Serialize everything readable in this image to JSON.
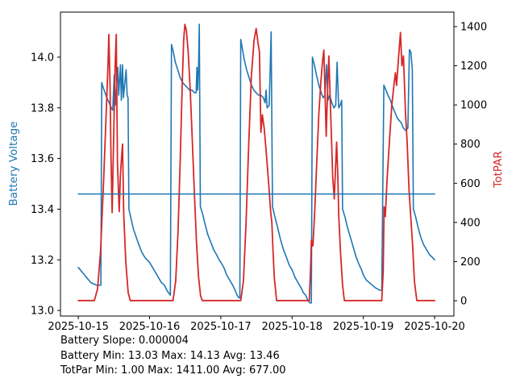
{
  "chart_data": {
    "type": "line",
    "title": "",
    "grid": false,
    "legend": "none",
    "x_axis": {
      "kind": "date",
      "range_hours": [
        -6,
        126.5
      ],
      "ticks": [
        {
          "hour": 0,
          "label": "2025-10-15"
        },
        {
          "hour": 24,
          "label": "2025-10-16"
        },
        {
          "hour": 48,
          "label": "2025-10-17"
        },
        {
          "hour": 72,
          "label": "2025-10-18"
        },
        {
          "hour": 96,
          "label": "2025-10-19"
        },
        {
          "hour": 120,
          "label": "2025-10-20"
        }
      ]
    },
    "y_left": {
      "label": "Battery Voltage",
      "color": "#1f77b4",
      "range": [
        12.978,
        14.178
      ],
      "ticks": [
        {
          "value": 13.0,
          "label": "13.0"
        },
        {
          "value": 13.2,
          "label": "13.2"
        },
        {
          "value": 13.4,
          "label": "13.4"
        },
        {
          "value": 13.6,
          "label": "13.6"
        },
        {
          "value": 13.8,
          "label": "13.8"
        },
        {
          "value": 14.0,
          "label": "14.0"
        }
      ]
    },
    "y_right": {
      "label": "TotPAR",
      "color": "#d62728",
      "range": [
        -78,
        1474
      ],
      "ticks": [
        {
          "value": 0,
          "label": "0"
        },
        {
          "value": 200,
          "label": "200"
        },
        {
          "value": 400,
          "label": "400"
        },
        {
          "value": 600,
          "label": "600"
        },
        {
          "value": 800,
          "label": "800"
        },
        {
          "value": 1000,
          "label": "1000"
        },
        {
          "value": 1200,
          "label": "1200"
        },
        {
          "value": 1400,
          "label": "1400"
        }
      ]
    },
    "series": [
      {
        "name": "battery-voltage",
        "axis": "left",
        "color": "#1f77b4",
        "width": 1.6,
        "points": [
          [
            0,
            13.17
          ],
          [
            0.7,
            13.16
          ],
          [
            1.4,
            13.15
          ],
          [
            2.1,
            13.14
          ],
          [
            2.8,
            13.13
          ],
          [
            3.5,
            13.12
          ],
          [
            4.2,
            13.11
          ],
          [
            5.2,
            13.105
          ],
          [
            6.2,
            13.1
          ],
          [
            7.0,
            13.1
          ],
          [
            7.6,
            13.1
          ],
          [
            7.9,
            13.9
          ],
          [
            8.4,
            13.88
          ],
          [
            9.0,
            13.86
          ],
          [
            9.6,
            13.84
          ],
          [
            10.4,
            13.82
          ],
          [
            11.1,
            13.8
          ],
          [
            11.6,
            13.79
          ],
          [
            12.1,
            13.93
          ],
          [
            12.45,
            13.81
          ],
          [
            13.3,
            13.96
          ],
          [
            13.6,
            13.85
          ],
          [
            14.2,
            13.97
          ],
          [
            14.5,
            13.83
          ],
          [
            14.9,
            13.97
          ],
          [
            15.2,
            13.84
          ],
          [
            16.1,
            13.95
          ],
          [
            16.45,
            13.85
          ],
          [
            16.75,
            13.84
          ],
          [
            17.05,
            13.4
          ],
          [
            17.8,
            13.36
          ],
          [
            18.6,
            13.32
          ],
          [
            19.5,
            13.29
          ],
          [
            20.4,
            13.26
          ],
          [
            21.4,
            13.23
          ],
          [
            22.4,
            13.21
          ],
          [
            23.2,
            13.2
          ],
          [
            24,
            13.19
          ],
          [
            25,
            13.17
          ],
          [
            26,
            13.15
          ],
          [
            27,
            13.13
          ],
          [
            28,
            13.11
          ],
          [
            29,
            13.1
          ],
          [
            29.8,
            13.08
          ],
          [
            30.4,
            13.07
          ],
          [
            31.0,
            13.06
          ],
          [
            31.4,
            14.05
          ],
          [
            32.0,
            14.02
          ],
          [
            32.7,
            13.98
          ],
          [
            33.5,
            13.95
          ],
          [
            34.3,
            13.92
          ],
          [
            35.1,
            13.9
          ],
          [
            35.9,
            13.89
          ],
          [
            36.7,
            13.88
          ],
          [
            37.5,
            13.87
          ],
          [
            38.3,
            13.87
          ],
          [
            39.1,
            13.86
          ],
          [
            39.7,
            13.86
          ],
          [
            39.95,
            13.96
          ],
          [
            40.2,
            13.87
          ],
          [
            40.5,
            13.97
          ],
          [
            40.75,
            14.13
          ],
          [
            41.1,
            13.41
          ],
          [
            41.9,
            13.38
          ],
          [
            42.7,
            13.34
          ],
          [
            43.6,
            13.3
          ],
          [
            44.6,
            13.27
          ],
          [
            45.6,
            13.24
          ],
          [
            46.6,
            13.22
          ],
          [
            47.4,
            13.2
          ],
          [
            48,
            13.19
          ],
          [
            49,
            13.17
          ],
          [
            50,
            13.14
          ],
          [
            51,
            13.12
          ],
          [
            52,
            13.1
          ],
          [
            52.8,
            13.08
          ],
          [
            53.5,
            13.06
          ],
          [
            54.1,
            13.05
          ],
          [
            54.4,
            13.05
          ],
          [
            54.7,
            14.07
          ],
          [
            55.3,
            14.03
          ],
          [
            55.9,
            13.99
          ],
          [
            56.7,
            13.95
          ],
          [
            57.5,
            13.92
          ],
          [
            58.3,
            13.89
          ],
          [
            59.1,
            13.87
          ],
          [
            59.9,
            13.86
          ],
          [
            60.7,
            13.85
          ],
          [
            61.5,
            13.85
          ],
          [
            62.3,
            13.84
          ],
          [
            62.9,
            13.82
          ],
          [
            63.25,
            13.87
          ],
          [
            63.6,
            13.8
          ],
          [
            64.3,
            13.81
          ],
          [
            64.95,
            14.1
          ],
          [
            65.4,
            13.41
          ],
          [
            66.2,
            13.37
          ],
          [
            67.1,
            13.33
          ],
          [
            68.1,
            13.28
          ],
          [
            69.1,
            13.24
          ],
          [
            70.1,
            13.21
          ],
          [
            71,
            13.18
          ],
          [
            72,
            13.16
          ],
          [
            73,
            13.13
          ],
          [
            74,
            13.11
          ],
          [
            75,
            13.09
          ],
          [
            75.8,
            13.07
          ],
          [
            76.6,
            13.06
          ],
          [
            77.3,
            13.04
          ],
          [
            78.0,
            13.03
          ],
          [
            78.5,
            13.03
          ],
          [
            78.85,
            14.0
          ],
          [
            79.5,
            13.97
          ],
          [
            80.2,
            13.93
          ],
          [
            81.0,
            13.89
          ],
          [
            81.8,
            13.86
          ],
          [
            82.5,
            13.84
          ],
          [
            83.1,
            13.85
          ],
          [
            83.6,
            13.97
          ],
          [
            84.1,
            13.83
          ],
          [
            84.7,
            13.85
          ],
          [
            85.4,
            13.82
          ],
          [
            86.1,
            13.8
          ],
          [
            86.7,
            13.81
          ],
          [
            87.15,
            13.98
          ],
          [
            87.7,
            13.8
          ],
          [
            88.2,
            13.81
          ],
          [
            88.7,
            13.83
          ],
          [
            89.0,
            13.4
          ],
          [
            89.8,
            13.37
          ],
          [
            90.6,
            13.33
          ],
          [
            91.6,
            13.29
          ],
          [
            92.6,
            13.25
          ],
          [
            93.6,
            13.21
          ],
          [
            94.6,
            13.18
          ],
          [
            95.4,
            13.16
          ],
          [
            96,
            13.14
          ],
          [
            97,
            13.12
          ],
          [
            98,
            13.11
          ],
          [
            99,
            13.1
          ],
          [
            100,
            13.09
          ],
          [
            100.8,
            13.085
          ],
          [
            101.5,
            13.08
          ],
          [
            102.2,
            13.08
          ],
          [
            102.9,
            13.89
          ],
          [
            103.6,
            13.87
          ],
          [
            104.3,
            13.85
          ],
          [
            105.1,
            13.83
          ],
          [
            106.0,
            13.8
          ],
          [
            106.7,
            13.78
          ],
          [
            107.4,
            13.76
          ],
          [
            108.1,
            13.75
          ],
          [
            108.8,
            13.74
          ],
          [
            109.5,
            13.72
          ],
          [
            110.3,
            13.71
          ],
          [
            111.0,
            13.72
          ],
          [
            111.5,
            14.03
          ],
          [
            112.0,
            14.02
          ],
          [
            112.5,
            13.95
          ],
          [
            112.85,
            13.4
          ],
          [
            113.6,
            13.37
          ],
          [
            114.4,
            13.33
          ],
          [
            115.3,
            13.29
          ],
          [
            116.3,
            13.26
          ],
          [
            117.3,
            13.24
          ],
          [
            118.3,
            13.22
          ],
          [
            119.2,
            13.21
          ],
          [
            120,
            13.2
          ]
        ]
      },
      {
        "name": "totpar",
        "axis": "right",
        "color": "#d62728",
        "width": 1.8,
        "points": [
          [
            0,
            1
          ],
          [
            5.4,
            1
          ],
          [
            6.5,
            60
          ],
          [
            7.5,
            250
          ],
          [
            8.5,
            600
          ],
          [
            9.5,
            1000
          ],
          [
            10.0,
            1200
          ],
          [
            10.3,
            1360
          ],
          [
            10.7,
            1100
          ],
          [
            11.0,
            750
          ],
          [
            11.4,
            450
          ],
          [
            12.0,
            900
          ],
          [
            12.4,
            1200
          ],
          [
            12.8,
            1360
          ],
          [
            13.2,
            700
          ],
          [
            13.8,
            455
          ],
          [
            14.2,
            650
          ],
          [
            14.9,
            800
          ],
          [
            15.3,
            450
          ],
          [
            16.0,
            200
          ],
          [
            16.8,
            40
          ],
          [
            17.5,
            1
          ],
          [
            31.9,
            1
          ],
          [
            32.8,
            100
          ],
          [
            33.6,
            350
          ],
          [
            34.3,
            700
          ],
          [
            35.0,
            1100
          ],
          [
            35.5,
            1330
          ],
          [
            35.9,
            1411
          ],
          [
            36.4,
            1380
          ],
          [
            37.0,
            1270
          ],
          [
            37.7,
            1080
          ],
          [
            38.4,
            820
          ],
          [
            39.1,
            550
          ],
          [
            39.8,
            300
          ],
          [
            40.5,
            120
          ],
          [
            41.2,
            25
          ],
          [
            41.8,
            1
          ],
          [
            54.7,
            1
          ],
          [
            55.6,
            100
          ],
          [
            56.5,
            400
          ],
          [
            57.4,
            800
          ],
          [
            58.3,
            1150
          ],
          [
            59.2,
            1330
          ],
          [
            59.9,
            1390
          ],
          [
            60.5,
            1320
          ],
          [
            61.0,
            1270
          ],
          [
            61.5,
            860
          ],
          [
            62.0,
            950
          ],
          [
            62.6,
            880
          ],
          [
            63.3,
            760
          ],
          [
            64.1,
            600
          ],
          [
            64.8,
            450
          ],
          [
            65.2,
            400
          ],
          [
            65.45,
            295
          ],
          [
            66.0,
            120
          ],
          [
            66.8,
            1
          ],
          [
            77.8,
            1
          ],
          [
            78.2,
            150
          ],
          [
            78.5,
            310
          ],
          [
            79.0,
            280
          ],
          [
            79.6,
            450
          ],
          [
            80.3,
            700
          ],
          [
            81.0,
            950
          ],
          [
            81.7,
            1120
          ],
          [
            82.3,
            1230
          ],
          [
            82.7,
            1280
          ],
          [
            83.1,
            1050
          ],
          [
            83.5,
            840
          ],
          [
            84.0,
            1100
          ],
          [
            84.4,
            1250
          ],
          [
            84.9,
            1000
          ],
          [
            85.7,
            630
          ],
          [
            86.2,
            520
          ],
          [
            87.0,
            810
          ],
          [
            87.4,
            640
          ],
          [
            87.7,
            440
          ],
          [
            88.3,
            250
          ],
          [
            89.0,
            80
          ],
          [
            89.6,
            1
          ],
          [
            102.2,
            1
          ],
          [
            102.7,
            150
          ],
          [
            103.0,
            480
          ],
          [
            103.4,
            430
          ],
          [
            104.0,
            620
          ],
          [
            104.8,
            820
          ],
          [
            105.6,
            1000
          ],
          [
            106.3,
            1100
          ],
          [
            106.8,
            1165
          ],
          [
            107.2,
            1100
          ],
          [
            107.8,
            1230
          ],
          [
            108.5,
            1370
          ],
          [
            109.0,
            1200
          ],
          [
            109.5,
            1250
          ],
          [
            110.2,
            950
          ],
          [
            110.7,
            825
          ],
          [
            111.4,
            560
          ],
          [
            112.0,
            420
          ],
          [
            112.6,
            283
          ],
          [
            113.2,
            100
          ],
          [
            114.0,
            1
          ],
          [
            120,
            1
          ]
        ]
      },
      {
        "name": "battery-trend-line",
        "axis": "left",
        "color": "#1f77b4",
        "width": 1.5,
        "points": [
          [
            0,
            13.46
          ],
          [
            120,
            13.46
          ]
        ]
      }
    ],
    "stats_summary": {
      "battery_slope": 4e-06,
      "battery_min": 13.03,
      "battery_max": 14.13,
      "battery_avg": 13.46,
      "totpar_min": 1.0,
      "totpar_max": 1411.0,
      "totpar_avg": 677.0
    }
  },
  "stats": {
    "line1": "Battery Slope: 0.000004",
    "line2": "Battery Min: 13.03 Max: 14.13 Avg: 13.46",
    "line3": "TotPar Min: 1.00 Max: 1411.00 Avg: 677.00"
  }
}
